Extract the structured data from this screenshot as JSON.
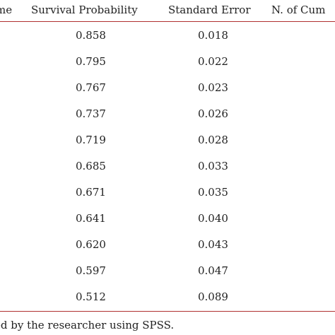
{
  "header": {
    "time": "me",
    "survival_probability": "Survival Probability",
    "standard_error": "Standard Error",
    "n_cumulative": "N. of Cum"
  },
  "rows": [
    {
      "survival_probability": "0.858",
      "standard_error": "0.018"
    },
    {
      "survival_probability": "0.795",
      "standard_error": "0.022"
    },
    {
      "survival_probability": "0.767",
      "standard_error": "0.023"
    },
    {
      "survival_probability": "0.737",
      "standard_error": "0.026"
    },
    {
      "survival_probability": "0.719",
      "standard_error": "0.028"
    },
    {
      "survival_probability": "0.685",
      "standard_error": "0.033"
    },
    {
      "survival_probability": "0.671",
      "standard_error": "0.035"
    },
    {
      "survival_probability": "0.641",
      "standard_error": "0.040"
    },
    {
      "survival_probability": "0.620",
      "standard_error": "0.043"
    },
    {
      "survival_probability": "0.597",
      "standard_error": "0.047"
    },
    {
      "survival_probability": "0.512",
      "standard_error": "0.089"
    }
  ],
  "footer": {
    "note": "ed by the researcher using SPSS."
  },
  "colors": {
    "rule": "#b03030",
    "text": "#222222"
  }
}
